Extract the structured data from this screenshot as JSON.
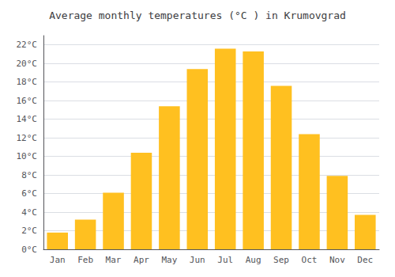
{
  "chart_data": {
    "type": "bar",
    "title": "Average monthly temperatures (°C ) in Krumovgrad",
    "categories": [
      "Jan",
      "Feb",
      "Mar",
      "Apr",
      "May",
      "Jun",
      "Jul",
      "Aug",
      "Sep",
      "Oct",
      "Nov",
      "Dec"
    ],
    "values": [
      1.8,
      3.2,
      6.1,
      10.4,
      15.4,
      19.4,
      21.6,
      21.3,
      17.6,
      12.4,
      7.9,
      3.7
    ],
    "color": "#FFC020",
    "ylim": [
      0,
      23
    ],
    "yticks": [
      {
        "value": 0,
        "label": "0°C"
      },
      {
        "value": 2,
        "label": "2°C"
      },
      {
        "value": 4,
        "label": "4°C"
      },
      {
        "value": 6,
        "label": "6°C"
      },
      {
        "value": 8,
        "label": "8°C"
      },
      {
        "value": 10,
        "label": "10°C"
      },
      {
        "value": 12,
        "label": "12°C"
      },
      {
        "value": 14,
        "label": "14°C"
      },
      {
        "value": 16,
        "label": "16°C"
      },
      {
        "value": 18,
        "label": "18°C"
      },
      {
        "value": 20,
        "label": "20°C"
      },
      {
        "value": 22,
        "label": "22°C"
      }
    ],
    "grid": true
  }
}
